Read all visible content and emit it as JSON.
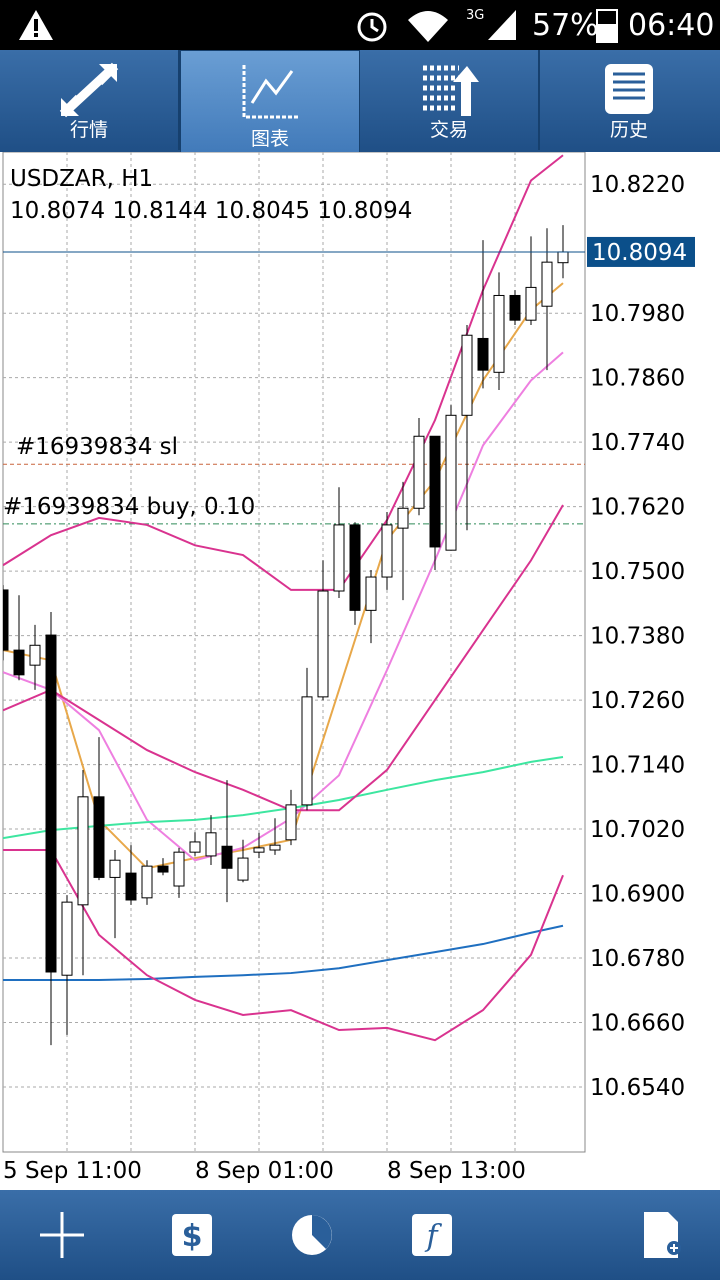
{
  "status_bar": {
    "network": "3G",
    "battery": "57%",
    "time": "06:40"
  },
  "tabs": [
    "行情",
    "图表",
    "交易",
    "历史"
  ],
  "chart_data": {
    "type": "candlestick",
    "symbol": "USDZAR, H1",
    "categories": [
      "5 Sep 11:00",
      null,
      null,
      null,
      null,
      null,
      null,
      null,
      null,
      null,
      null,
      null,
      "8 Sep 01:00",
      null,
      null,
      null,
      null,
      null,
      null,
      null,
      null,
      null,
      null,
      null,
      "8 Sep 13:00",
      null,
      null,
      null,
      null,
      null,
      null,
      null,
      null,
      null,
      null,
      null
    ],
    "open": [
      10.7465,
      10.7353,
      10.7325,
      10.7381,
      10.6748,
      10.6879,
      10.708,
      10.693,
      10.6938,
      10.6892,
      10.6951,
      10.6914,
      10.6977,
      10.697,
      10.6988,
      10.6925,
      10.6977,
      10.6981,
      10.7,
      10.7065,
      10.7266,
      10.7463,
      10.7586,
      10.7427,
      10.7489,
      10.758,
      10.7617,
      10.7751,
      10.7539,
      10.779,
      10.7933,
      10.787,
      10.8013,
      10.7967,
      10.7993,
      10.8074
    ],
    "high": [
      10.7474,
      10.7455,
      10.74,
      10.7424,
      10.6897,
      10.713,
      10.7191,
      10.6981,
      10.699,
      10.6962,
      10.6966,
      10.6985,
      10.7014,
      10.7046,
      10.7111,
      10.7,
      10.7013,
      10.704,
      10.7093,
      10.732,
      10.752,
      10.7656,
      10.7591,
      10.7502,
      10.761,
      10.7666,
      10.7785,
      10.7751,
      10.7809,
      10.7958,
      10.8116,
      10.8056,
      10.8023,
      10.8123,
      10.8138,
      10.8144
    ],
    "low": [
      10.7334,
      10.7297,
      10.7279,
      10.6618,
      10.6637,
      10.6748,
      10.6925,
      10.6817,
      10.6879,
      10.6879,
      10.6934,
      10.6892,
      10.697,
      10.6953,
      10.6884,
      10.6921,
      10.6966,
      10.6972,
      10.699,
      10.7055,
      10.726,
      10.745,
      10.74,
      10.7366,
      10.7465,
      10.7446,
      10.7604,
      10.7502,
      10.7539,
      10.7576,
      10.784,
      10.7837,
      10.7958,
      10.7958,
      10.7874,
      10.8045
    ],
    "close": [
      10.7353,
      10.7307,
      10.7362,
      10.6754,
      10.6884,
      10.708,
      10.693,
      10.6962,
      10.6888,
      10.6951,
      10.694,
      10.6977,
      10.6996,
      10.7013,
      10.6947,
      10.6966,
      10.6985,
      10.699,
      10.7065,
      10.7266,
      10.7463,
      10.7586,
      10.7427,
      10.7489,
      10.7586,
      10.7617,
      10.7751,
      10.7545,
      10.779,
      10.7939,
      10.7874,
      10.8013,
      10.7967,
      10.8028,
      10.8075,
      10.8094
    ],
    "up_color": "#ffffff",
    "down_color": "#000000",
    "line_x": [
      0,
      3,
      6,
      9,
      12,
      15,
      18,
      21,
      24,
      27,
      30,
      33,
      35
    ],
    "lines": [
      {
        "color": "#e8a84a",
        "values": [
          10.7353,
          10.7334,
          10.7037,
          10.6947,
          10.6966,
          10.6981,
          10.7,
          10.7279,
          10.7558,
          10.7669,
          10.7855,
          10.7986,
          10.8036
        ]
      },
      {
        "color": "#ee7fe0",
        "values": [
          10.7312,
          10.7279,
          10.7204,
          10.7037,
          10.6962,
          10.6985,
          10.704,
          10.712,
          10.7316,
          10.752,
          10.7734,
          10.7855,
          10.7907
        ]
      },
      {
        "color": "#3de6a0",
        "values": [
          10.7003,
          10.7018,
          10.7026,
          10.7033,
          10.7037,
          10.7046,
          10.7059,
          10.7074,
          10.7093,
          10.7111,
          10.7126,
          10.7145,
          10.7154
        ]
      },
      {
        "color": "#1f6fc0",
        "values": [
          10.6739,
          10.6739,
          10.6739,
          10.6741,
          10.6745,
          10.6748,
          10.6752,
          10.6761,
          10.6776,
          10.6791,
          10.6806,
          10.6827,
          10.684
        ]
      },
      {
        "color": "#d9338f",
        "values": [
          10.7511,
          10.7567,
          10.7599,
          10.7586,
          10.7548,
          10.753,
          10.7465,
          10.7465,
          10.7595,
          10.7781,
          10.8023,
          10.8227,
          10.8274
        ]
      },
      {
        "color": "#d9338f",
        "values": [
          10.7241,
          10.7279,
          10.7223,
          10.7167,
          10.7126,
          10.7093,
          10.7055,
          10.7055,
          10.713,
          10.726,
          10.739,
          10.752,
          10.7623
        ]
      },
      {
        "color": "#d9338f",
        "values": [
          10.6981,
          10.6981,
          10.6823,
          10.6748,
          10.6702,
          10.6674,
          10.6683,
          10.6646,
          10.665,
          10.6627,
          10.6683,
          10.6786,
          10.6934
        ]
      }
    ],
    "levels": [
      {
        "label": "#16939834 sl",
        "value": 10.7699,
        "color": "#c8643c"
      },
      {
        "label": "#16939834 buy, 0.10",
        "value": 10.7588,
        "color": "#2e8b57"
      }
    ],
    "price": {
      "value": 10.8094,
      "color": "#0b4f8a"
    },
    "ylim": [
      10.6419,
      10.828
    ],
    "yticks": [
      {
        "value": 10.822,
        "label": "10.8220"
      },
      {
        "value": 10.798,
        "label": "10.7980"
      },
      {
        "value": 10.786,
        "label": "10.7860"
      },
      {
        "value": 10.774,
        "label": "10.7740"
      },
      {
        "value": 10.762,
        "label": "10.7620"
      },
      {
        "value": 10.75,
        "label": "10.7500"
      },
      {
        "value": 10.738,
        "label": "10.7380"
      },
      {
        "value": 10.726,
        "label": "10.7260"
      },
      {
        "value": 10.714,
        "label": "10.7140"
      },
      {
        "value": 10.702,
        "label": "10.7020"
      },
      {
        "value": 10.69,
        "label": "10.6900"
      },
      {
        "value": 10.678,
        "label": "10.6780"
      },
      {
        "value": 10.666,
        "label": "10.6660"
      },
      {
        "value": 10.654,
        "label": "10.6540"
      }
    ],
    "grid": true
  }
}
